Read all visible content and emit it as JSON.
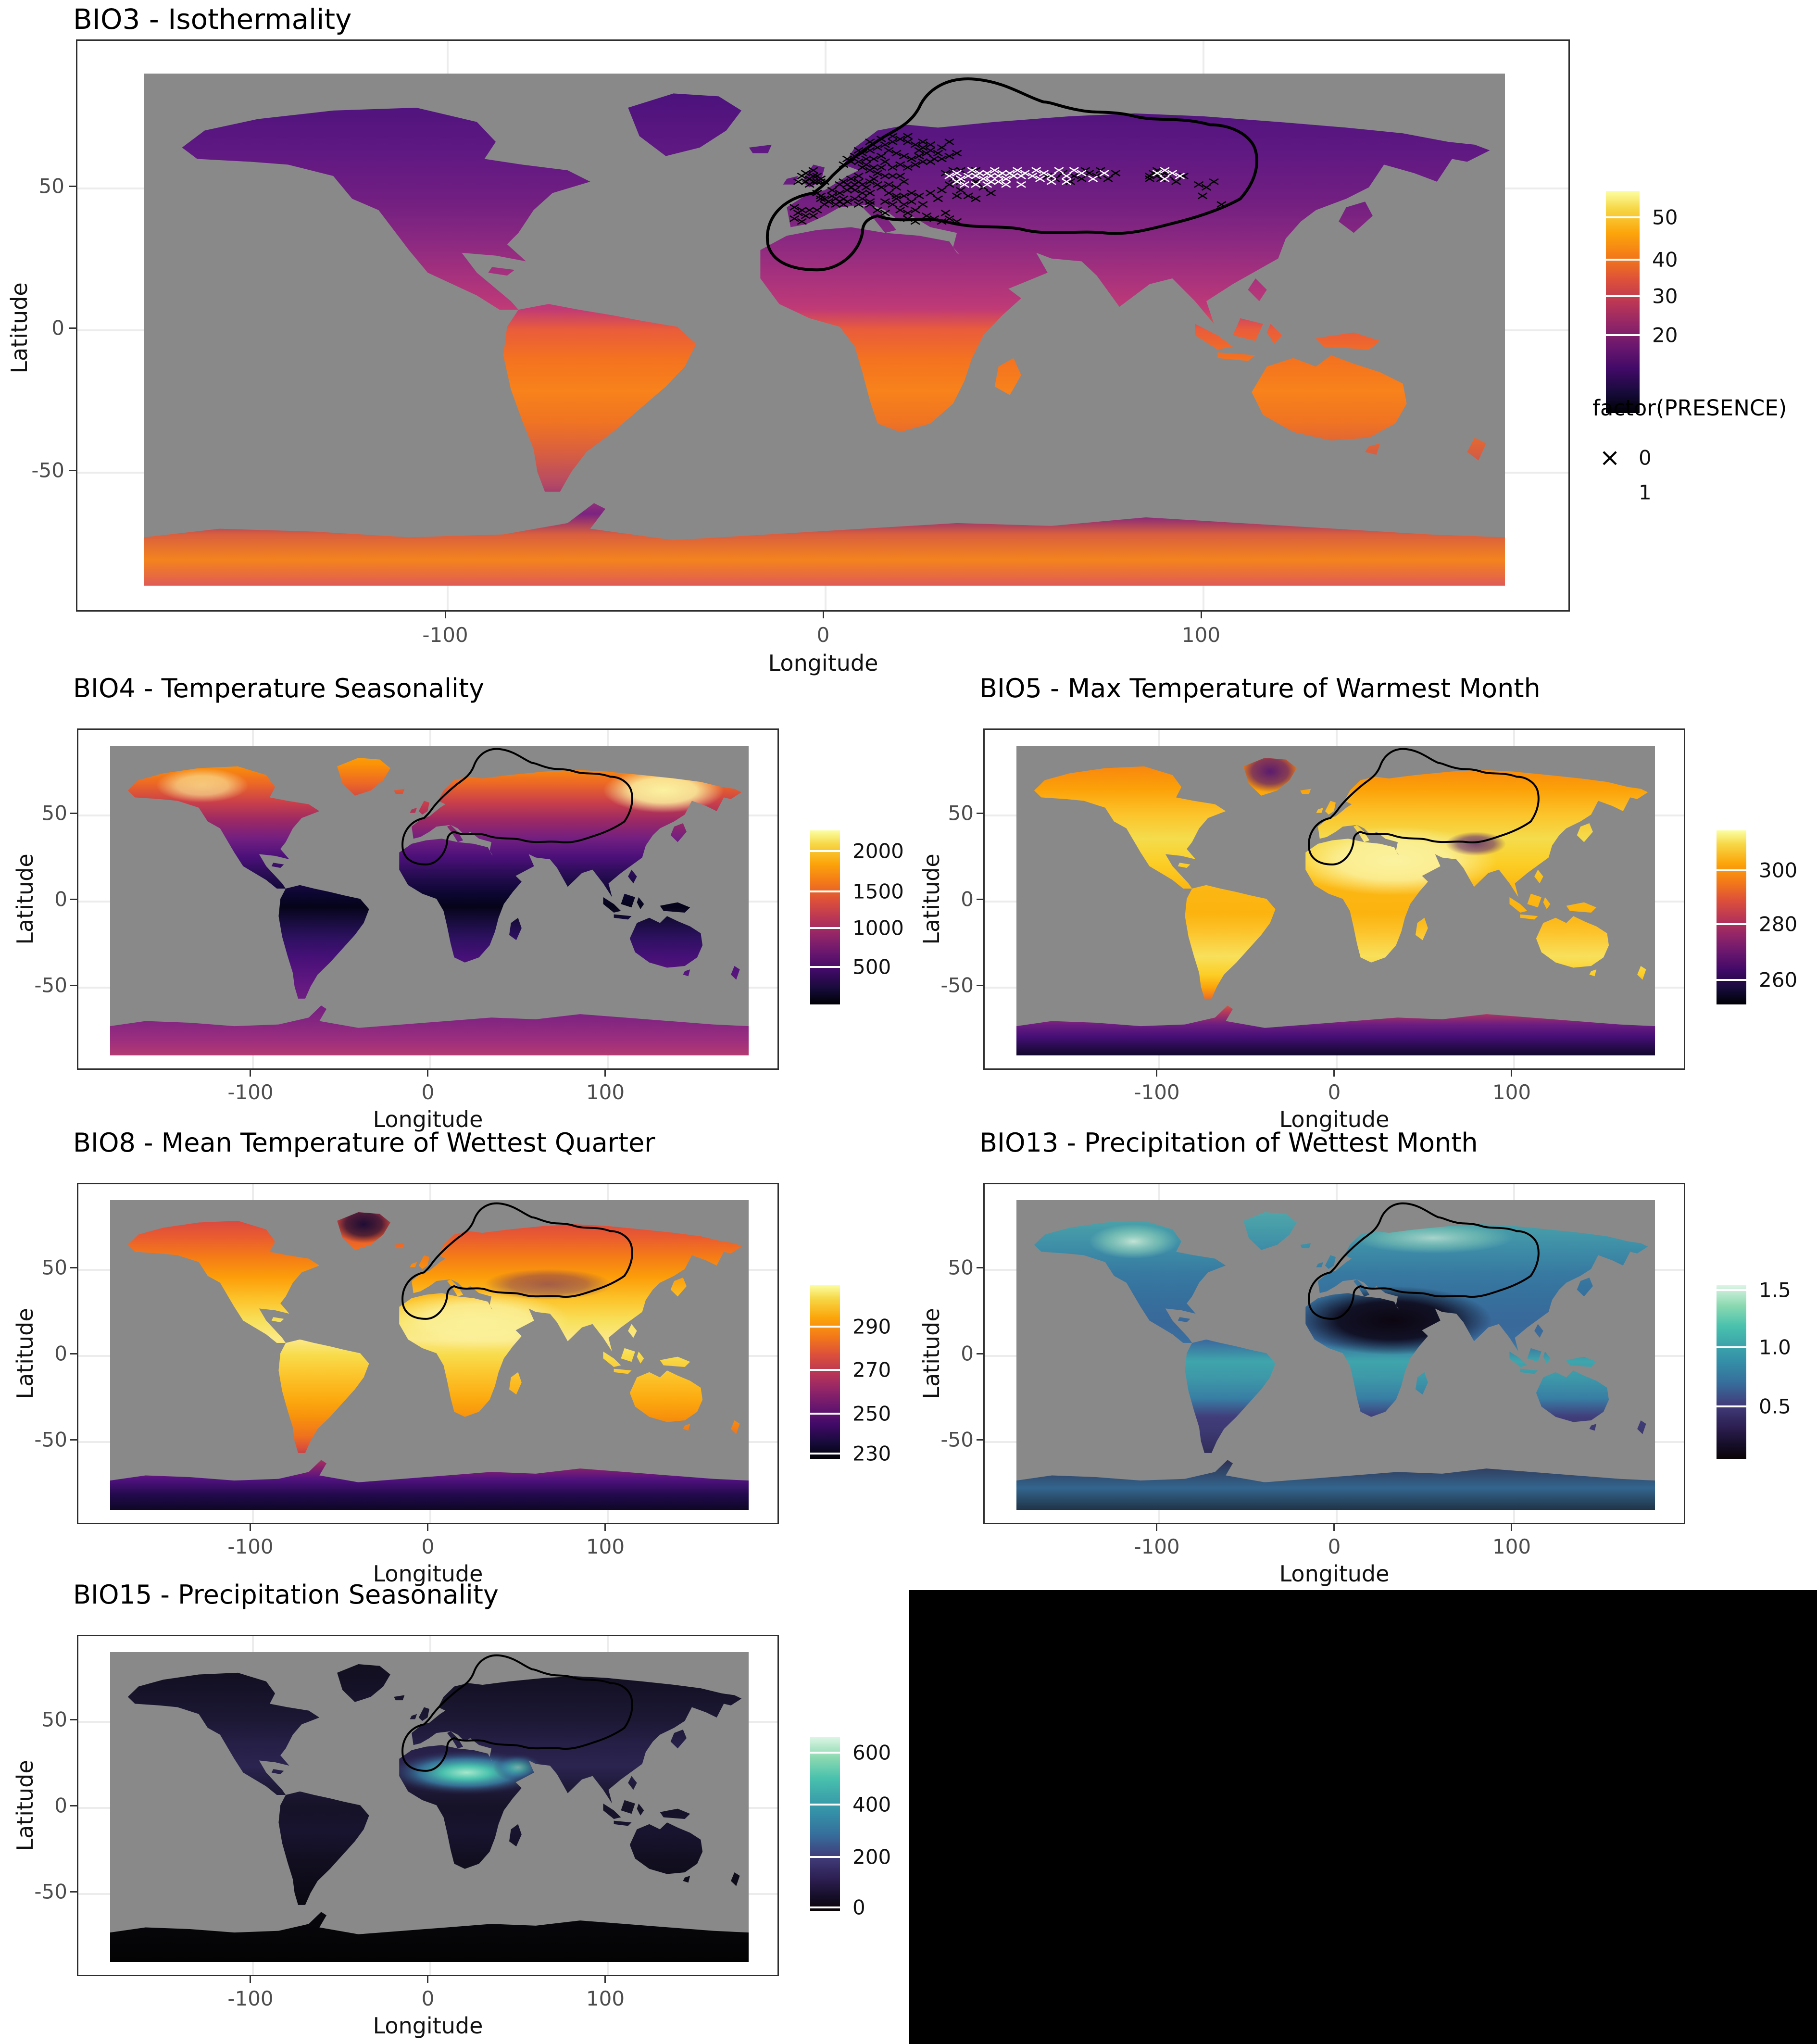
{
  "figure": {
    "background": "#ffffff",
    "ocean_color": "#898989",
    "outline_color": "#000000",
    "grid_color": "#ececec",
    "panel_border_color": "#2e2e2e"
  },
  "axes": {
    "x_label": "Longitude",
    "y_label": "Latitude",
    "x_ticks": [
      "-100",
      "0",
      "100"
    ],
    "y_ticks": [
      "50",
      "0",
      "-50"
    ]
  },
  "plots": {
    "bio3": {
      "title": "BIO3 - Isothermality",
      "colorbar_ticks": [
        "50",
        "40",
        "30",
        "20"
      ],
      "presence_legend": {
        "title": "factor(PRESENCE)",
        "items": [
          {
            "marker": "×",
            "marker_color": "#000000",
            "label": "0"
          },
          {
            "marker": "×",
            "marker_color": "#ffffff",
            "label": "1"
          }
        ]
      }
    },
    "bio4": {
      "title": "BIO4 - Temperature Seasonality",
      "colorbar_ticks": [
        "2000",
        "1500",
        "1000",
        "500"
      ]
    },
    "bio5": {
      "title": "BIO5 - Max Temperature of Warmest Month",
      "colorbar_ticks": [
        "300",
        "280",
        "260"
      ]
    },
    "bio8": {
      "title": "BIO8 - Mean Temperature of Wettest Quarter",
      "colorbar_ticks": [
        "290",
        "270",
        "250",
        "230"
      ]
    },
    "bio13": {
      "title": "BIO13 - Precipitation of Wettest Month",
      "colorbar_ticks": [
        "1.5",
        "1.0",
        "0.5"
      ]
    },
    "bio15": {
      "title": "BIO15 - Precipitation Seasonality",
      "colorbar_ticks": [
        "600",
        "400",
        "200",
        "0"
      ]
    }
  },
  "chart_data": [
    {
      "id": "bio3",
      "type": "heatmap",
      "title": "BIO3 - Isothermality",
      "xlabel": "Longitude",
      "ylabel": "Latitude",
      "xlim": [
        -180,
        180
      ],
      "ylim": [
        -90,
        90
      ],
      "x_ticks": [
        -100,
        0,
        100
      ],
      "y_ticks": [
        50,
        0,
        -50
      ],
      "projection": "equirectangular world raster, gray ocean",
      "color_scale": {
        "palette": "inferno",
        "palette_hex": [
          "#000004",
          "#160b39",
          "#420a68",
          "#6a176e",
          "#932667",
          "#bc3754",
          "#dd513a",
          "#f37819",
          "#fca50a",
          "#f6d746",
          "#fcffa4"
        ],
        "colorbar_tick_values": [
          50,
          40,
          30,
          20
        ],
        "domain_estimate": [
          14,
          57
        ]
      },
      "range_outline": "black hull over Europe, North Africa and western/central Asia",
      "presence_overlay": {
        "legend_title": "factor(PRESENCE)",
        "classes": [
          {
            "value": 0,
            "marker": "x",
            "color": "#000000"
          },
          {
            "value": 1,
            "marker": "x",
            "color": "#ffffff"
          }
        ],
        "absence_points_lonlat": [
          [
            -7,
            52
          ],
          [
            -6,
            54
          ],
          [
            -5,
            52
          ],
          [
            -4,
            53
          ],
          [
            -3,
            52
          ],
          [
            -3,
            54
          ],
          [
            -2,
            52
          ],
          [
            -1,
            52
          ],
          [
            -1,
            53
          ],
          [
            0,
            52
          ],
          [
            -2,
            54
          ],
          [
            -4,
            51
          ],
          [
            -5,
            55
          ],
          [
            -3,
            56
          ],
          [
            -2,
            48
          ],
          [
            -1,
            47
          ],
          [
            0,
            46
          ],
          [
            1,
            45
          ],
          [
            2,
            47
          ],
          [
            3,
            46
          ],
          [
            4,
            45
          ],
          [
            2,
            49
          ],
          [
            4,
            48
          ],
          [
            5,
            46
          ],
          [
            0,
            44
          ],
          [
            3,
            44
          ],
          [
            5,
            44
          ],
          [
            6,
            45
          ],
          [
            -1,
            46
          ],
          [
            -8,
            43
          ],
          [
            -6,
            42
          ],
          [
            -4,
            42
          ],
          [
            -2,
            42
          ],
          [
            -7,
            41
          ],
          [
            -5,
            40
          ],
          [
            -3,
            40
          ],
          [
            -8,
            39
          ],
          [
            -6,
            38
          ],
          [
            4,
            51
          ],
          [
            5,
            52
          ],
          [
            6,
            51
          ],
          [
            7,
            50
          ],
          [
            8,
            51
          ],
          [
            9,
            52
          ],
          [
            10,
            51
          ],
          [
            11,
            50
          ],
          [
            12,
            52
          ],
          [
            8,
            49
          ],
          [
            10,
            48
          ],
          [
            12,
            48
          ],
          [
            7,
            53
          ],
          [
            9,
            54
          ],
          [
            13,
            53
          ],
          [
            14,
            51
          ],
          [
            6,
            49
          ],
          [
            8,
            46
          ],
          [
            10,
            46
          ],
          [
            12,
            45
          ],
          [
            14,
            42
          ],
          [
            16,
            41
          ],
          [
            12,
            44
          ],
          [
            9,
            44
          ],
          [
            16,
            45
          ],
          [
            18,
            44
          ],
          [
            20,
            42
          ],
          [
            22,
            41
          ],
          [
            24,
            42
          ],
          [
            26,
            44
          ],
          [
            21,
            44
          ],
          [
            19,
            46
          ],
          [
            23,
            45
          ],
          [
            22,
            39
          ],
          [
            24,
            38
          ],
          [
            15,
            50
          ],
          [
            17,
            51
          ],
          [
            19,
            50
          ],
          [
            21,
            52
          ],
          [
            17,
            48
          ],
          [
            19,
            47
          ],
          [
            21,
            47
          ],
          [
            23,
            48
          ],
          [
            25,
            47
          ],
          [
            16,
            54
          ],
          [
            18,
            54
          ],
          [
            20,
            54
          ],
          [
            5,
            58
          ],
          [
            7,
            59
          ],
          [
            9,
            59
          ],
          [
            11,
            58
          ],
          [
            13,
            57
          ],
          [
            15,
            57
          ],
          [
            12,
            56
          ],
          [
            14,
            55
          ],
          [
            10,
            57
          ],
          [
            6,
            60
          ],
          [
            8,
            61
          ],
          [
            10,
            62
          ],
          [
            12,
            63
          ],
          [
            14,
            64
          ],
          [
            16,
            65
          ],
          [
            18,
            66
          ],
          [
            20,
            67
          ],
          [
            22,
            66
          ],
          [
            24,
            65
          ],
          [
            26,
            64
          ],
          [
            28,
            63
          ],
          [
            30,
            62
          ],
          [
            17,
            63
          ],
          [
            19,
            62
          ],
          [
            21,
            61
          ],
          [
            23,
            60
          ],
          [
            25,
            61
          ],
          [
            27,
            62
          ],
          [
            15,
            61
          ],
          [
            13,
            60
          ],
          [
            11,
            60
          ],
          [
            9,
            63
          ],
          [
            12,
            66
          ],
          [
            15,
            67
          ],
          [
            18,
            68
          ],
          [
            22,
            68
          ],
          [
            26,
            66
          ],
          [
            28,
            65
          ],
          [
            25,
            63
          ],
          [
            29,
            60
          ],
          [
            31,
            60
          ],
          [
            33,
            61
          ],
          [
            35,
            62
          ],
          [
            31,
            64
          ],
          [
            33,
            66
          ],
          [
            28,
            59
          ],
          [
            26,
            59
          ],
          [
            24,
            58
          ],
          [
            22,
            57
          ],
          [
            20,
            58
          ],
          [
            18,
            57
          ],
          [
            16,
            59
          ],
          [
            32,
            55
          ],
          [
            34,
            53
          ],
          [
            36,
            52
          ],
          [
            38,
            54
          ],
          [
            40,
            52
          ],
          [
            42,
            50
          ],
          [
            44,
            48
          ],
          [
            36,
            49
          ],
          [
            38,
            47
          ],
          [
            40,
            46
          ],
          [
            34,
            56
          ],
          [
            36,
            56
          ],
          [
            33,
            51
          ],
          [
            31,
            49
          ],
          [
            35,
            47
          ],
          [
            30,
            46
          ],
          [
            28,
            48
          ],
          [
            40,
            56
          ],
          [
            27,
            40
          ],
          [
            29,
            39
          ],
          [
            31,
            38
          ],
          [
            33,
            39
          ],
          [
            35,
            38
          ],
          [
            32,
            41
          ],
          [
            59,
            54
          ],
          [
            61,
            53
          ],
          [
            63,
            55
          ],
          [
            66,
            54
          ],
          [
            68,
            53
          ],
          [
            70,
            55
          ],
          [
            72,
            54
          ],
          [
            75,
            53
          ],
          [
            77,
            55
          ],
          [
            65,
            52
          ],
          [
            69,
            56
          ],
          [
            73,
            56
          ],
          [
            86,
            54
          ],
          [
            87,
            55
          ],
          [
            88,
            54
          ],
          [
            89,
            53
          ],
          [
            90,
            55
          ],
          [
            91,
            54
          ],
          [
            88,
            56
          ],
          [
            86,
            53
          ],
          [
            93,
            52
          ],
          [
            95,
            54
          ],
          [
            99,
            51
          ],
          [
            101,
            50
          ],
          [
            103,
            52
          ],
          [
            105,
            44
          ],
          [
            100,
            47
          ]
        ],
        "presence_points_lonlat": [
          [
            33,
            54
          ],
          [
            35,
            55
          ],
          [
            36,
            53
          ],
          [
            38,
            54
          ],
          [
            39,
            56
          ],
          [
            40,
            54
          ],
          [
            41,
            55
          ],
          [
            42,
            53
          ],
          [
            43,
            55
          ],
          [
            44,
            54
          ],
          [
            45,
            56
          ],
          [
            46,
            54
          ],
          [
            47,
            55
          ],
          [
            48,
            53
          ],
          [
            49,
            55
          ],
          [
            50,
            54
          ],
          [
            51,
            56
          ],
          [
            52,
            54
          ],
          [
            53,
            55
          ],
          [
            55,
            54
          ],
          [
            56,
            56
          ],
          [
            57,
            53
          ],
          [
            44,
            52
          ],
          [
            40,
            51
          ],
          [
            37,
            51
          ],
          [
            35,
            52
          ],
          [
            48,
            51
          ],
          [
            52,
            51
          ],
          [
            43,
            51
          ],
          [
            46,
            52
          ],
          [
            58,
            55
          ],
          [
            60,
            54
          ],
          [
            62,
            56
          ],
          [
            64,
            54
          ],
          [
            66,
            56
          ],
          [
            68,
            55
          ],
          [
            71,
            53
          ],
          [
            74,
            55
          ],
          [
            64,
            52
          ],
          [
            60,
            52
          ],
          [
            88,
            55
          ],
          [
            90,
            53
          ],
          [
            92,
            55
          ],
          [
            94,
            54
          ],
          [
            90,
            56
          ]
        ]
      }
    },
    {
      "id": "bio4",
      "type": "heatmap",
      "title": "BIO4 - Temperature Seasonality",
      "xlabel": "Longitude",
      "ylabel": "Latitude",
      "xlim": [
        -180,
        180
      ],
      "ylim": [
        -90,
        90
      ],
      "x_ticks": [
        -100,
        0,
        100
      ],
      "y_ticks": [
        50,
        0,
        -50
      ],
      "color_scale": {
        "palette": "inferno",
        "colorbar_tick_values": [
          2000,
          1500,
          1000,
          500
        ],
        "domain_estimate": [
          0,
          2300
        ]
      },
      "range_outline": "black hull over Europe, North Africa and western/central Asia"
    },
    {
      "id": "bio5",
      "type": "heatmap",
      "title": "BIO5 - Max Temperature of Warmest Month",
      "xlabel": "Longitude",
      "ylabel": "Latitude",
      "xlim": [
        -180,
        180
      ],
      "ylim": [
        -90,
        90
      ],
      "x_ticks": [
        -100,
        0,
        100
      ],
      "y_ticks": [
        50,
        0,
        -50
      ],
      "color_scale": {
        "palette": "inferno",
        "colorbar_tick_values": [
          300,
          280,
          260
        ],
        "domain_estimate": [
          248,
          318
        ]
      },
      "range_outline": "black hull over Europe, North Africa and western/central Asia"
    },
    {
      "id": "bio8",
      "type": "heatmap",
      "title": "BIO8 - Mean Temperature of Wettest Quarter",
      "xlabel": "Longitude",
      "ylabel": "Latitude",
      "xlim": [
        -180,
        180
      ],
      "ylim": [
        -90,
        90
      ],
      "x_ticks": [
        -100,
        0,
        100
      ],
      "y_ticks": [
        50,
        0,
        -50
      ],
      "color_scale": {
        "palette": "inferno",
        "colorbar_tick_values": [
          290,
          270,
          250,
          230
        ],
        "domain_estimate": [
          228,
          308
        ]
      },
      "range_outline": "black hull over Europe, North Africa and western/central Asia"
    },
    {
      "id": "bio13",
      "type": "heatmap",
      "title": "BIO13 - Precipitation of Wettest Month",
      "xlabel": "Longitude",
      "ylabel": "Latitude",
      "xlim": [
        -180,
        180
      ],
      "ylim": [
        -90,
        90
      ],
      "x_ticks": [
        -100,
        0,
        100
      ],
      "y_ticks": [
        50,
        0,
        -50
      ],
      "color_scale": {
        "palette": "mako",
        "palette_hex": [
          "#0b0405",
          "#2e1e3b",
          "#413d7b",
          "#37659e",
          "#348fa7",
          "#40b7ad",
          "#8ad9b1",
          "#def5e5"
        ],
        "colorbar_tick_values": [
          1.5,
          1.0,
          0.5
        ],
        "domain_estimate": [
          0,
          1.6
        ]
      },
      "range_outline": "black hull over Europe, North Africa and western/central Asia"
    },
    {
      "id": "bio15",
      "type": "heatmap",
      "title": "BIO15 - Precipitation Seasonality",
      "xlabel": "Longitude",
      "ylabel": "Latitude",
      "xlim": [
        -180,
        180
      ],
      "ylim": [
        -90,
        90
      ],
      "x_ticks": [
        -100,
        0,
        100
      ],
      "y_ticks": [
        50,
        0,
        -50
      ],
      "color_scale": {
        "palette": "mako",
        "colorbar_tick_values": [
          600,
          400,
          200,
          0
        ],
        "domain_estimate": [
          0,
          640
        ]
      },
      "range_outline": "black hull over Europe, North Africa and western/central Asia"
    }
  ]
}
